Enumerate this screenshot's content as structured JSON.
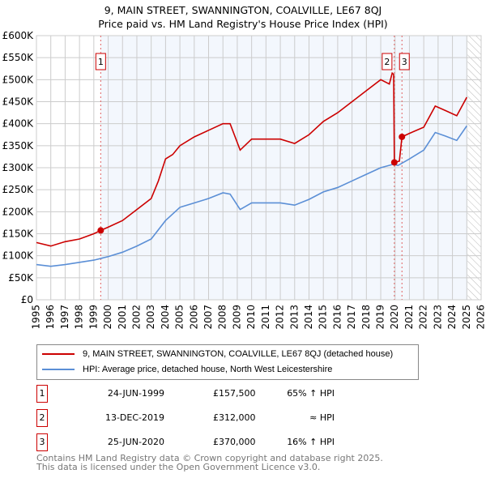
{
  "title": "9, MAIN STREET, SWANNINGTON, COALVILLE, LE67 8QJ",
  "subtitle": "Price paid vs. HM Land Registry's House Price Index (HPI)",
  "chart_data": {
    "type": "line",
    "xlim": [
      1995,
      2026
    ],
    "ylim": [
      0,
      600000
    ],
    "x_ticks": [
      "1995",
      "1996",
      "1997",
      "1998",
      "1999",
      "2000",
      "2001",
      "2002",
      "2003",
      "2004",
      "2005",
      "2006",
      "2007",
      "2008",
      "2009",
      "2010",
      "2011",
      "2012",
      "2013",
      "2014",
      "2015",
      "2016",
      "2017",
      "2018",
      "2019",
      "2020",
      "2021",
      "2022",
      "2023",
      "2024",
      "2025",
      "2026"
    ],
    "y_ticks": [
      {
        "v": 0,
        "l": "£0"
      },
      {
        "v": 50000,
        "l": "£50K"
      },
      {
        "v": 100000,
        "l": "£100K"
      },
      {
        "v": 150000,
        "l": "£150K"
      },
      {
        "v": 200000,
        "l": "£200K"
      },
      {
        "v": 250000,
        "l": "£250K"
      },
      {
        "v": 300000,
        "l": "£300K"
      },
      {
        "v": 350000,
        "l": "£350K"
      },
      {
        "v": 400000,
        "l": "£400K"
      },
      {
        "v": 450000,
        "l": "£450K"
      },
      {
        "v": 500000,
        "l": "£500K"
      },
      {
        "v": 550000,
        "l": "£550K"
      },
      {
        "v": 600000,
        "l": "£600K"
      }
    ],
    "shaded_from": 1999.48,
    "hatched_from": 2025.05,
    "series": [
      {
        "name": "9, MAIN STREET, SWANNINGTON, COALVILLE, LE67 8QJ (detached house)",
        "color": "#cc0000",
        "x": [
          1995,
          1996,
          1997,
          1998,
          1999,
          1999.48,
          2000,
          2001,
          2002,
          2003,
          2003.5,
          2004,
          2004.5,
          2005,
          2006,
          2007,
          2008,
          2008.5,
          2009.2,
          2010,
          2011,
          2012,
          2013,
          2014,
          2015,
          2016,
          2017,
          2018,
          2019,
          2019.6,
          2019.8,
          2019.9,
          2019.95,
          2020.3,
          2020.48,
          2021,
          2022,
          2022.8,
          2023.5,
          2024.3,
          2025
        ],
        "y": [
          130000,
          122000,
          132000,
          138000,
          150000,
          157500,
          165000,
          180000,
          205000,
          230000,
          270000,
          320000,
          330000,
          350000,
          370000,
          385000,
          400000,
          400000,
          340000,
          365000,
          365000,
          365000,
          355000,
          375000,
          405000,
          425000,
          450000,
          475000,
          500000,
          490000,
          515000,
          512000,
          312000,
          315000,
          370000,
          378000,
          392000,
          440000,
          430000,
          418000,
          460000
        ]
      },
      {
        "name": "HPI: Average price, detached house, North West Leicestershire",
        "color": "#5b8fd6",
        "x": [
          1995,
          1996,
          1997,
          1998,
          1999,
          2000,
          2001,
          2002,
          2003,
          2004,
          2004.5,
          2005,
          2006,
          2007,
          2008,
          2008.5,
          2009.2,
          2010,
          2011,
          2012,
          2013,
          2014,
          2015,
          2016,
          2017,
          2018,
          2019,
          2019.9,
          2020.2,
          2021,
          2022,
          2022.8,
          2023.5,
          2024.3,
          2025
        ],
        "y": [
          80000,
          76000,
          80000,
          85000,
          90000,
          98000,
          108000,
          122000,
          138000,
          180000,
          195000,
          210000,
          220000,
          230000,
          243000,
          240000,
          205000,
          220000,
          220000,
          220000,
          215000,
          228000,
          245000,
          255000,
          270000,
          285000,
          300000,
          308000,
          305000,
          320000,
          340000,
          380000,
          372000,
          362000,
          395000
        ]
      }
    ],
    "sales": [
      {
        "label": "1",
        "x": 1999.48,
        "y": 157500
      },
      {
        "label": "2",
        "x": 2019.95,
        "y": 312000
      },
      {
        "label": "3",
        "x": 2020.48,
        "y": 370000
      }
    ]
  },
  "legend": {
    "property": "9, MAIN STREET, SWANNINGTON, COALVILLE, LE67 8QJ (detached house)",
    "hpi": "HPI: Average price, detached house, North West Leicestershire"
  },
  "transactions": [
    {
      "num": "1",
      "date": "24-JUN-1999",
      "price": "£157,500",
      "hpi": "65% ↑ HPI"
    },
    {
      "num": "2",
      "date": "13-DEC-2019",
      "price": "£312,000",
      "hpi": "≈ HPI"
    },
    {
      "num": "3",
      "date": "25-JUN-2020",
      "price": "£370,000",
      "hpi": "16% ↑ HPI"
    }
  ],
  "footer": {
    "line1": "Contains HM Land Registry data © Crown copyright and database right 2025.",
    "line2": "This data is licensed under the Open Government Licence v3.0."
  }
}
